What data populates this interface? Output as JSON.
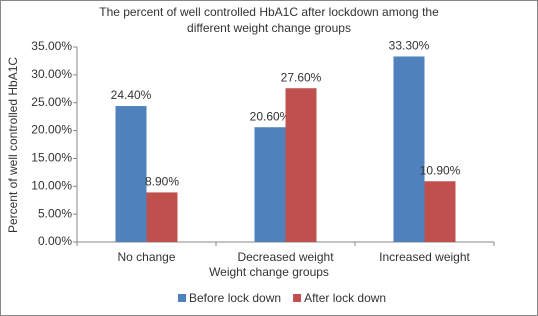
{
  "chart_data": {
    "type": "bar",
    "title": [
      "The percent of well controlled HbA1C after lockdown among the",
      "different weight change groups"
    ],
    "x_label": "Weight change groups",
    "y_label": "Percent of well controlled HbA1C",
    "categories": [
      "No change",
      "Decreased weight",
      "Increased weight"
    ],
    "series": [
      {
        "name": "Before lock down",
        "color": "#4f81bd",
        "values": [
          24.4,
          20.6,
          33.3
        ],
        "value_labels": [
          "24.40%",
          "20.60%",
          "33.30%"
        ]
      },
      {
        "name": "After lock down",
        "color": "#c0504d",
        "values": [
          8.9,
          27.6,
          10.9
        ],
        "value_labels": [
          "8.90%",
          "27.60%",
          "10.90%"
        ]
      }
    ],
    "ylim": [
      0,
      35
    ],
    "yticks": [
      {
        "value": 0,
        "label": "0.00%"
      },
      {
        "value": 5,
        "label": "5.00%"
      },
      {
        "value": 10,
        "label": "10.00%"
      },
      {
        "value": 15,
        "label": "15.00%"
      },
      {
        "value": 20,
        "label": "20.00%"
      },
      {
        "value": 25,
        "label": "25.00%"
      },
      {
        "value": 30,
        "label": "30.00%"
      },
      {
        "value": 35,
        "label": "35.00%"
      }
    ],
    "grid": false,
    "legend": "bottom"
  }
}
